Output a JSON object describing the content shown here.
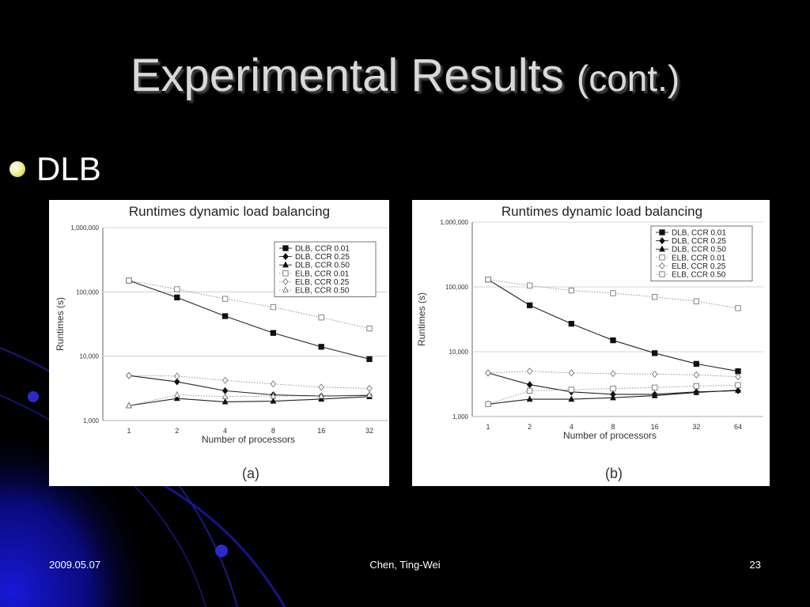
{
  "slide": {
    "title_main": "Experimental Results",
    "title_suffix": "(cont.)",
    "bullet": "DLB"
  },
  "footer": {
    "date": "2009.05.07",
    "author": "Chen, Ting-Wei",
    "page": "23"
  },
  "colors": {
    "background": "#000000",
    "accent_blue": "#1a1ad0",
    "title_text": "#d9d9d9"
  },
  "chart_data": [
    {
      "type": "line",
      "title": "Runtimes dynamic load balancing",
      "caption": "(a)",
      "xlabel": "Number of processors",
      "ylabel": "Runtimes (s)",
      "yscale": "log",
      "ylim": [
        1000,
        1000000
      ],
      "yticks": [
        "1,000",
        "10,000",
        "100,000",
        "1,000,000"
      ],
      "categories": [
        "1",
        "2",
        "4",
        "8",
        "16",
        "32"
      ],
      "legend": "top-right",
      "series": [
        {
          "name": "DLB, CCR 0.01",
          "marker": "square-filled",
          "line": "solid",
          "values": [
            150000,
            82000,
            42000,
            23000,
            14000,
            9000
          ]
        },
        {
          "name": "DLB, CCR 0.25",
          "marker": "diamond-filled",
          "line": "solid",
          "values": [
            5000,
            4000,
            2900,
            2500,
            2400,
            2450
          ]
        },
        {
          "name": "DLB, CCR 0.50",
          "marker": "triangle-filled",
          "line": "solid",
          "values": [
            1700,
            2200,
            1950,
            2000,
            2150,
            2350
          ]
        },
        {
          "name": "ELB, CCR 0.01",
          "marker": "square-open",
          "line": "dotted",
          "values": [
            150000,
            110000,
            78000,
            58000,
            40000,
            27000
          ]
        },
        {
          "name": "ELB, CCR 0.25",
          "marker": "diamond-open",
          "line": "dotted",
          "values": [
            5000,
            4900,
            4200,
            3700,
            3300,
            3150
          ]
        },
        {
          "name": "ELB, CCR 0.50",
          "marker": "triangle-open",
          "line": "dotted",
          "values": [
            1700,
            2500,
            2350,
            2400,
            2400,
            2500
          ]
        }
      ]
    },
    {
      "type": "line",
      "title": "Runtimes dynamic load balancing",
      "caption": "(b)",
      "xlabel": "Number of processors",
      "ylabel": "Runtimes (s)",
      "yscale": "log",
      "ylim": [
        1000,
        1000000
      ],
      "yticks": [
        "1,000",
        "10,000",
        "100,000",
        "1,000,000"
      ],
      "categories": [
        "1",
        "2",
        "4",
        "8",
        "16",
        "32",
        "64"
      ],
      "legend": "top-right",
      "series": [
        {
          "name": "DLB, CCR 0.01",
          "marker": "square-filled",
          "line": "solid",
          "values": [
            130000,
            52000,
            27000,
            15000,
            9500,
            6500,
            5000
          ]
        },
        {
          "name": "DLB, CCR 0.25",
          "marker": "diamond-filled",
          "line": "solid",
          "values": [
            4700,
            3100,
            2400,
            2200,
            2200,
            2400,
            2500
          ]
        },
        {
          "name": "DLB, CCR 0.50",
          "marker": "triangle-filled",
          "line": "solid",
          "values": [
            1550,
            1850,
            1850,
            1950,
            2100,
            2350,
            2550
          ]
        },
        {
          "name": "ELB, CCR 0.01",
          "marker": "square-open",
          "line": "dotted",
          "values": [
            130000,
            105000,
            88000,
            80000,
            70000,
            60000,
            47000
          ]
        },
        {
          "name": "ELB, CCR 0.25",
          "marker": "diamond-open",
          "line": "dotted",
          "values": [
            4700,
            5000,
            4700,
            4600,
            4500,
            4400,
            4100
          ]
        },
        {
          "name": "ELB, CCR 0.50",
          "marker": "square-open",
          "line": "dotted",
          "values": [
            1550,
            2500,
            2600,
            2700,
            2800,
            2950,
            3050
          ]
        }
      ]
    }
  ]
}
